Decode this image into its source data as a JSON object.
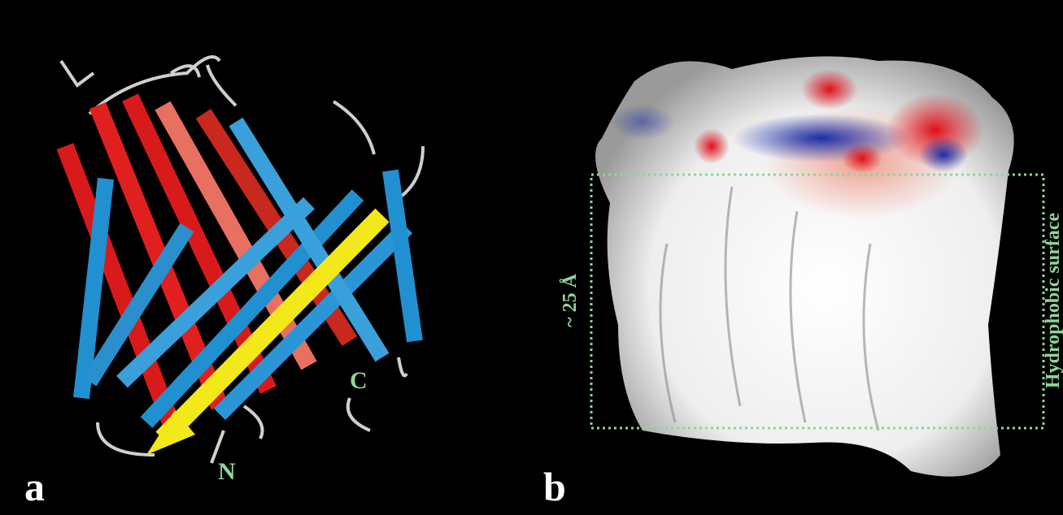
{
  "panels": [
    {
      "label": "a",
      "annotations": [
        "N",
        "C"
      ]
    },
    {
      "label": "b",
      "annotations": [
        "~ 25 Å",
        "Hydrophobic surface"
      ]
    }
  ]
}
